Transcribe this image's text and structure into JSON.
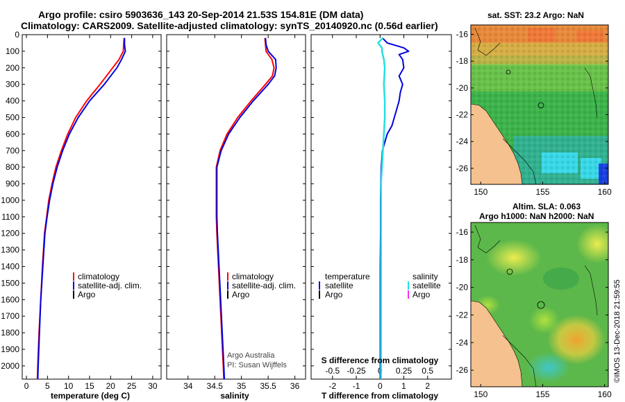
{
  "header": {
    "line1": "Argo profile: csiro 5903636_143 20-Sep-2014 21.53S 154.81E (DM data)",
    "line2": "Climatology: CARS2009. Satellite-adjusted climatology: synTS_20140920.nc (0.56d earlier)"
  },
  "colors": {
    "climatology": "#ff0000",
    "satellite": "#0000dd",
    "argo": "#000000",
    "salinity_satellite": "#22e0e0",
    "salinity_argo": "#ee33ee",
    "land": "#f5c18e"
  },
  "depth_axis": {
    "ticks": [
      0,
      100,
      200,
      300,
      400,
      500,
      600,
      700,
      800,
      900,
      1000,
      1100,
      1200,
      1300,
      1400,
      1500,
      1600,
      1700,
      1800,
      1900,
      2000
    ],
    "range": [
      0,
      2080
    ]
  },
  "credits": {
    "line1": "Argo Australia",
    "line2": "PI: Susan Wijffels"
  },
  "timestamp": "©IMOS 13-Dec-2018 21:59:55",
  "chart_data": [
    {
      "type": "line",
      "name": "temperature",
      "xlabel": "temperature (deg C)",
      "xlim": [
        -1,
        32
      ],
      "xticks": [
        0,
        5,
        10,
        15,
        20,
        25,
        30
      ],
      "legend": [
        "climatology",
        "satellite-adj. clim.",
        "Argo"
      ],
      "series": [
        {
          "name": "climatology",
          "depth": [
            20,
            60,
            100,
            150,
            200,
            250,
            300,
            400,
            500,
            600,
            700,
            800,
            900,
            1000,
            1100,
            1200,
            1400,
            1600,
            1800,
            2000,
            2080
          ],
          "values": [
            23.2,
            23.1,
            23.0,
            22.0,
            20.5,
            19.0,
            17.5,
            14.3,
            11.7,
            9.8,
            8.3,
            7.0,
            6.1,
            5.3,
            4.8,
            4.3,
            3.8,
            3.4,
            3.0,
            2.7,
            2.6
          ]
        },
        {
          "name": "satellite-adj. clim.",
          "depth": [
            20,
            60,
            100,
            150,
            200,
            250,
            300,
            400,
            500,
            600,
            700,
            800,
            900,
            1000,
            1100,
            1200,
            1400,
            1600,
            1800,
            2000,
            2080
          ],
          "values": [
            23.3,
            23.3,
            23.5,
            22.6,
            21.5,
            20.0,
            18.5,
            15.0,
            12.3,
            10.2,
            8.6,
            7.3,
            6.3,
            5.5,
            4.9,
            4.4,
            3.9,
            3.4,
            3.1,
            2.8,
            2.7
          ]
        }
      ]
    },
    {
      "type": "line",
      "name": "salinity",
      "xlabel": "salinity",
      "xlim": [
        33.6,
        36.2
      ],
      "xticks": [
        34,
        34.5,
        35,
        35.5,
        36
      ],
      "legend": [
        "climatology",
        "satellite-adj. clim.",
        "Argo"
      ],
      "series": [
        {
          "name": "climatology",
          "depth": [
            20,
            60,
            100,
            150,
            200,
            250,
            300,
            400,
            500,
            600,
            700,
            800,
            900,
            1000,
            1100,
            1200,
            1400,
            1600,
            1800,
            2000,
            2080
          ],
          "values": [
            35.44,
            35.45,
            35.46,
            35.57,
            35.61,
            35.58,
            35.45,
            35.18,
            34.93,
            34.73,
            34.6,
            34.53,
            34.53,
            34.53,
            34.53,
            34.54,
            34.57,
            34.6,
            34.63,
            34.66,
            34.67
          ]
        },
        {
          "name": "satellite-adj. clim.",
          "depth": [
            20,
            60,
            100,
            150,
            200,
            250,
            300,
            400,
            500,
            600,
            700,
            800,
            900,
            1000,
            1100,
            1200,
            1400,
            1600,
            1800,
            2000,
            2080
          ],
          "values": [
            35.45,
            35.46,
            35.5,
            35.64,
            35.65,
            35.62,
            35.5,
            35.22,
            34.97,
            34.76,
            34.62,
            34.54,
            34.54,
            34.54,
            34.54,
            34.55,
            34.58,
            34.61,
            34.64,
            34.67,
            34.68
          ]
        }
      ]
    },
    {
      "type": "line",
      "name": "difference",
      "xlabel": "T difference from climatology",
      "xlabel_top": "S difference from climatology",
      "xlim": [
        -2.9,
        3.0
      ],
      "xticks": [
        -2,
        -1,
        0,
        1,
        2
      ],
      "xticks_top": [
        "-0.5",
        "-0.25",
        "0",
        "0.25",
        "0.5"
      ],
      "legend_temperature": {
        "title": "temperature",
        "items": [
          "satellite",
          "Argo"
        ]
      },
      "legend_salinity": {
        "title": "salinity",
        "items": [
          "satellite",
          "Argo"
        ]
      },
      "series": [
        {
          "name": "temperature satellite",
          "depth": [
            20,
            50,
            80,
            100,
            120,
            150,
            200,
            250,
            300,
            350,
            400,
            450,
            500,
            550,
            600,
            650,
            700,
            800,
            900,
            1000,
            1200,
            1400,
            1600,
            1800,
            2000,
            2080
          ],
          "values": [
            0.1,
            0.3,
            1.0,
            1.2,
            0.8,
            0.95,
            1.0,
            0.8,
            0.95,
            0.85,
            0.8,
            0.7,
            0.6,
            0.5,
            0.3,
            0.2,
            0.1,
            0.05,
            0.03,
            0.02,
            0.02,
            0.01,
            0.01,
            0.01,
            0.01,
            0.01
          ]
        },
        {
          "name": "salinity satellite",
          "depth": [
            20,
            50,
            80,
            100,
            150,
            200,
            300,
            400,
            500,
            600,
            700,
            800,
            900,
            1000,
            1200,
            1400,
            1600,
            1800,
            2000,
            2080
          ],
          "values": [
            0.03,
            -0.02,
            0.02,
            0.02,
            0.04,
            0.05,
            0.04,
            0.05,
            0.05,
            0.04,
            0.03,
            0.02,
            0.01,
            0.01,
            0.01,
            0.01,
            0.01,
            0.01,
            0.01,
            0.01
          ]
        }
      ]
    }
  ],
  "maps": {
    "sst": {
      "title": "sat. SST: 23.2 Argo: NaN",
      "yticks": [
        -16,
        -18,
        -20,
        -22,
        -24,
        -26
      ],
      "xticks": [
        150,
        155,
        160
      ]
    },
    "sla": {
      "title1": "Altim. SLA: 0.063",
      "title2": "Argo h1000: NaN h2000: NaN",
      "yticks": [
        -16,
        -18,
        -20,
        -22,
        -24,
        -26
      ],
      "xticks": [
        150,
        155,
        160
      ]
    }
  }
}
